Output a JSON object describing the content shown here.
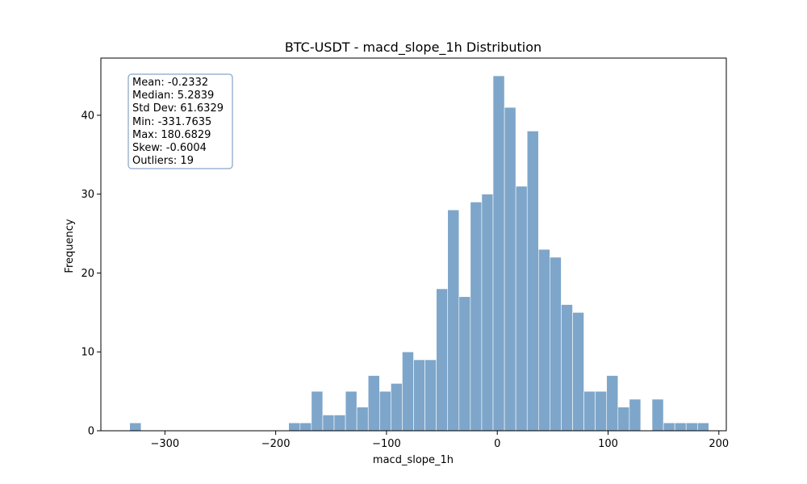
{
  "chart_data": {
    "type": "bar",
    "title": "BTC-USDT - macd_slope_1h Distribution",
    "xlabel": "macd_slope_1h",
    "ylabel": "Frequency",
    "xlim": [
      -357.79,
      206.7
    ],
    "ylim": [
      0,
      47.25
    ],
    "xticks": [
      -300,
      -200,
      -100,
      0,
      100,
      200
    ],
    "yticks": [
      0,
      10,
      20,
      30,
      40
    ],
    "bar_color": "#7ea6ca",
    "bins": {
      "start": -331.7635,
      "width": 10.249,
      "counts": [
        1,
        0,
        0,
        0,
        0,
        0,
        0,
        0,
        0,
        0,
        0,
        0,
        0,
        0,
        1,
        1,
        5,
        2,
        2,
        5,
        3,
        7,
        5,
        6,
        10,
        9,
        9,
        18,
        28,
        17,
        29,
        30,
        45,
        41,
        31,
        38,
        23,
        22,
        16,
        15,
        5,
        5,
        7,
        3,
        4,
        0,
        4,
        1,
        1,
        1,
        1
      ]
    },
    "stats_box": {
      "lines": [
        "Mean: -0.2332",
        "Median: 5.2839",
        "Std Dev: 61.6329",
        "Min: -331.7635",
        "Max: 180.6829",
        "Skew: -0.6004",
        "Outliers: 19"
      ],
      "border_color": "#6b8fb8"
    }
  }
}
